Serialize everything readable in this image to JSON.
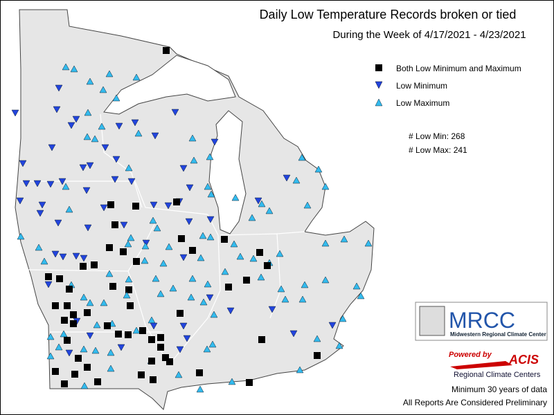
{
  "header": {
    "title": "Daily Low Temperature Records broken or tied",
    "subtitle": "During the Week of 4/17/2021 - 4/23/2021"
  },
  "legend": {
    "items": [
      "Both Low Minimum and Maximum",
      "Low Minimum",
      "Low Maximum"
    ]
  },
  "counts": [
    "# Low Min: 268",
    "# Low Max: 241"
  ],
  "logo": {
    "name": "MRCC",
    "full_name": "Midwestern Regional Climate Center"
  },
  "acis": {
    "powered": "Powered by",
    "name": "ACIS",
    "subtitle": "Regional Climate Centers"
  },
  "footer": [
    "Minimum 30 years of data",
    "All Reports Are Considered Preliminary"
  ]
}
